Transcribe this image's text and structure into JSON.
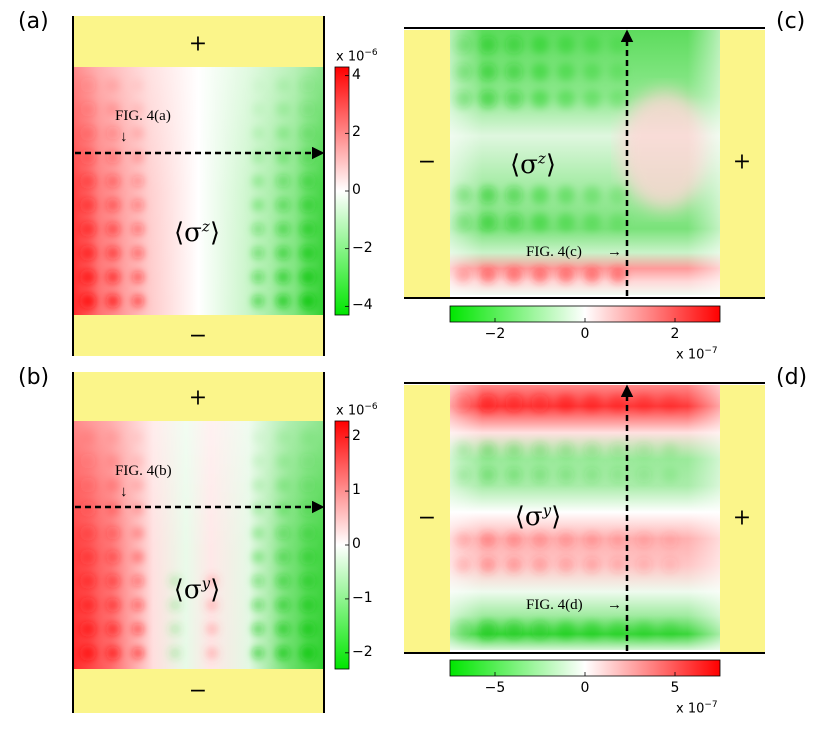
{
  "colors": {
    "positive": "#ff0000",
    "negative": "#00e600",
    "zero": "#ffffff",
    "lead": "#fbf58a",
    "line": "#000000"
  },
  "panels": {
    "a": {
      "label": "(a)",
      "plus": "+",
      "minus": "−",
      "observable": "⟨σ",
      "superscript": "z",
      "close": "⟩",
      "annotation": "FIG. 4(a)",
      "arrow": "↓"
    },
    "b": {
      "label": "(b)",
      "plus": "+",
      "minus": "−",
      "observable": "⟨σ",
      "superscript": "y",
      "close": "⟩",
      "annotation": "FIG. 4(b)",
      "arrow": "↓"
    },
    "c": {
      "label": "(c)",
      "plus": "+",
      "minus": "−",
      "observable": "⟨σ",
      "superscript": "z",
      "close": "⟩",
      "annotation": "FIG. 4(c)",
      "arrow": "→"
    },
    "d": {
      "label": "(d)",
      "plus": "+",
      "minus": "−",
      "observable": "⟨σ",
      "superscript": "y",
      "close": "⟩",
      "annotation": "FIG. 4(d)",
      "arrow": "→"
    }
  },
  "chart_data": [
    {
      "type": "heatmap",
      "panel": "(a)",
      "title": "⟨σ^z⟩",
      "colorbar": {
        "orientation": "vertical",
        "ticks": [
          "4",
          "2",
          "0",
          "−2",
          "−4"
        ],
        "tick_values": [
          4,
          2,
          0,
          -2,
          -4
        ],
        "range": [
          -4.3,
          4.3
        ],
        "scale_base": "x 10",
        "scale_exp": "−6"
      },
      "pattern": "red (positive) on left edge, green (negative) on right edge",
      "cut": "horizontal arrow",
      "cut_label": "FIG. 4(a)"
    },
    {
      "type": "heatmap",
      "panel": "(b)",
      "title": "⟨σ^y⟩",
      "colorbar": {
        "orientation": "vertical",
        "ticks": [
          "2",
          "1",
          "0",
          "−1",
          "−2"
        ],
        "tick_values": [
          2,
          1,
          0,
          -1,
          -2
        ],
        "range": [
          -2.3,
          2.3
        ],
        "scale_base": "x 10",
        "scale_exp": "−6"
      },
      "pattern": "red (positive) on left edge, green (negative) on right edge",
      "cut": "horizontal arrow",
      "cut_label": "FIG. 4(b)"
    },
    {
      "type": "heatmap",
      "panel": "(c)",
      "title": "⟨σ^z⟩",
      "colorbar": {
        "orientation": "horizontal",
        "ticks": [
          "−2",
          "0",
          "2"
        ],
        "tick_values": [
          -2,
          0,
          2
        ],
        "range": [
          -3,
          3
        ],
        "scale_base": "x 10",
        "scale_exp": "−7"
      },
      "pattern": "green (negative) upper half, red (positive) stripe at bottom",
      "cut": "vertical arrow",
      "cut_label": "FIG. 4(c)"
    },
    {
      "type": "heatmap",
      "panel": "(d)",
      "title": "⟨σ^y⟩",
      "colorbar": {
        "orientation": "horizontal",
        "ticks": [
          "−5",
          "0",
          "5"
        ],
        "tick_values": [
          -5,
          0,
          5
        ],
        "range": [
          -7.5,
          7.5
        ],
        "scale_base": "x 10",
        "scale_exp": "−7"
      },
      "pattern": "alternating stripes: red top, green, red middle, green bottom",
      "cut": "vertical arrow",
      "cut_label": "FIG. 4(d)"
    }
  ]
}
